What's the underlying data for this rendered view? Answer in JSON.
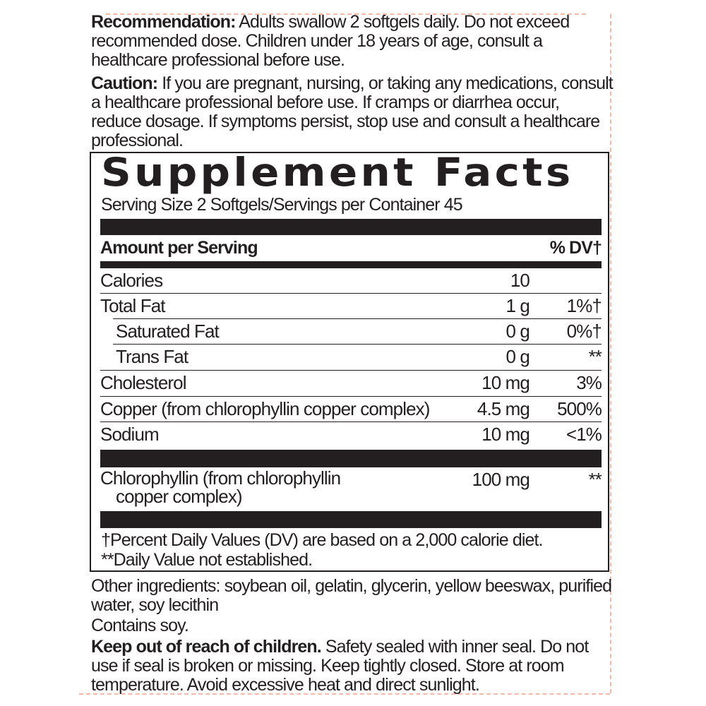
{
  "recommendation": {
    "label": "Recommendation:",
    "text": " Adults swallow 2 softgels daily. Do not exceed recommended dose. Children under 18 years of age, consult a healthcare professional before use."
  },
  "caution": {
    "label": "Caution:",
    "text": " If you are pregnant, nursing, or taking any medications, consult a healthcare professional before use. If cramps or diarrhea occur, reduce dosage. If symptoms persist, stop use and consult a healthcare professional."
  },
  "facts": {
    "title": "Supplement Facts",
    "serving": "Serving Size 2 Softgels/Servings per Container 45",
    "header_left": "Amount per Serving",
    "header_right": "% DV†",
    "rows": [
      {
        "name": "Calories",
        "amount": "10",
        "dv": ""
      },
      {
        "name": "Total Fat",
        "amount": "1 g",
        "dv": "1%†"
      },
      {
        "name": "Saturated Fat",
        "amount": "0 g",
        "dv": "0%†"
      },
      {
        "name": "Trans Fat",
        "amount": "0 g",
        "dv": "**"
      },
      {
        "name": "Cholesterol",
        "amount": "10 mg",
        "dv": "3%"
      },
      {
        "name": "Copper (from chlorophyllin copper complex)",
        "amount": "4.5 mg",
        "dv": "500%"
      },
      {
        "name": "Sodium",
        "amount": "10 mg",
        "dv": "<1%"
      }
    ],
    "other": {
      "name_line1": "Chlorophyllin (from chlorophyllin",
      "name_line2": "copper complex)",
      "amount": "100 mg",
      "dv": "**"
    },
    "footnote1": "†Percent Daily Values (DV) are based on a 2,000 calorie diet.",
    "footnote2": "**Daily Value not established."
  },
  "other_ingredients": "Other ingredients: soybean oil, gelatin, glycerin, yellow beeswax, purified water, soy lecithin",
  "contains": "Contains soy.",
  "keep_out": {
    "label": "Keep out of reach of children.",
    "text": " Safety sealed with inner seal. Do not use if seal is broken or missing. Keep tightly closed. Store at room temperature. Avoid excessive heat and direct sunlight."
  },
  "colors": {
    "text": "#231f20",
    "trim_line": "#f7b9a6"
  }
}
